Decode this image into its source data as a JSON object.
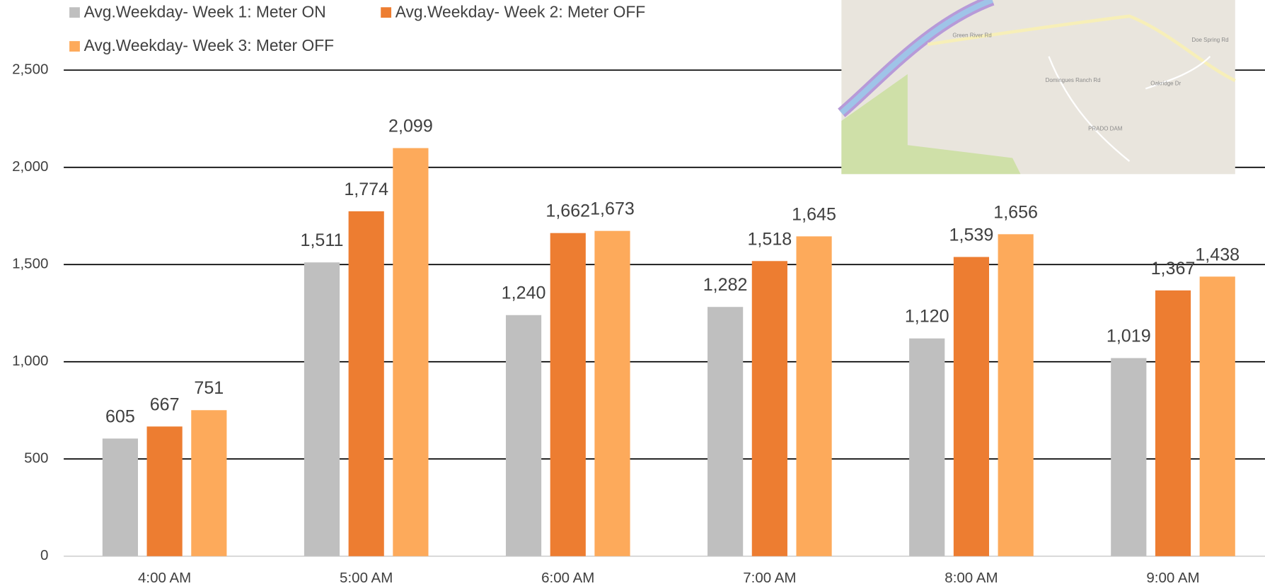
{
  "chart_data": {
    "type": "bar",
    "categories": [
      "4:00 AM",
      "5:00 AM",
      "6:00 AM",
      "7:00 AM",
      "8:00 AM",
      "9:00 AM"
    ],
    "series": [
      {
        "name": "Avg.Weekday- Week 1: Meter ON",
        "color": "#bfbfbf",
        "values": [
          605,
          1511,
          1240,
          1282,
          1120,
          1019
        ],
        "value_labels": [
          "605",
          "1,511",
          "1,240",
          "1,282",
          "1,120",
          "1,019"
        ]
      },
      {
        "name": "Avg.Weekday- Week 2: Meter OFF",
        "color": "#ed7d31",
        "values": [
          667,
          1774,
          1662,
          1518,
          1539,
          1367
        ],
        "value_labels": [
          "667",
          "1,774",
          "1,662",
          "1,518",
          "1,539",
          "1,367"
        ]
      },
      {
        "name": "Avg.Weekday- Week 3: Meter OFF",
        "color": "#fdaa5b",
        "values": [
          751,
          2099,
          1673,
          1645,
          1656,
          1438
        ],
        "value_labels": [
          "751",
          "2,099",
          "1,673",
          "1,645",
          "1,656",
          "1,438"
        ]
      }
    ],
    "ylim": [
      0,
      2500
    ],
    "yticks": [
      0,
      500,
      {
        "value": 1000,
        "label": "1,000"
      },
      {
        "value": 1500,
        "label": "1,500"
      },
      {
        "value": 2000,
        "label": "2,000"
      },
      {
        "value": 2500,
        "label": "2,500"
      }
    ],
    "grid": true
  },
  "map": {
    "labels": [
      "Green River Rd",
      "Domingues Ranch Rd",
      "Oakridge Dr",
      "PRADO DAM",
      "Doe Spring Rd"
    ]
  }
}
